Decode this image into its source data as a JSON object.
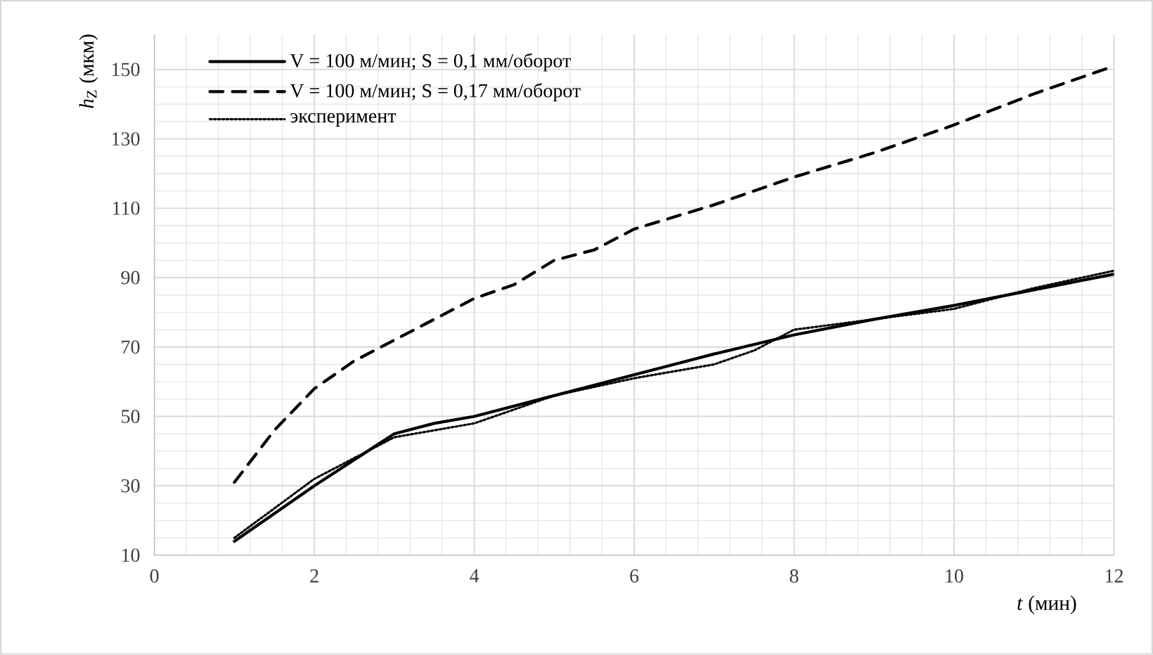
{
  "chart_data": {
    "type": "line",
    "xlabel": "*t* (мин)",
    "ylabel": "*h*$_{Z}$ (мкм)",
    "xlim": [
      0,
      12
    ],
    "xticks": [
      0,
      2,
      4,
      6,
      8,
      10,
      12
    ],
    "ylim": [
      10,
      160
    ],
    "yticks": [
      10,
      30,
      50,
      70,
      90,
      110,
      130,
      150
    ],
    "grid": true,
    "legend": "top left",
    "marker": "none",
    "series": [
      {
        "name": "V = 100 м/мин; S = 0,1 мм/оборот",
        "color": "#000000",
        "line_style": "solid",
        "x": [
          1,
          2,
          3,
          3.5,
          4,
          5,
          6,
          7,
          8,
          9,
          10,
          11,
          12
        ],
        "values": [
          14,
          30,
          45,
          48,
          50,
          56,
          62,
          68,
          73.5,
          78,
          82,
          86.5,
          91
        ]
      },
      {
        "name": "V = 100 м/мин; S = 0,17 мм/оборот",
        "color": "#000000",
        "line_style": "dashed",
        "x": [
          1,
          1.5,
          2,
          2.5,
          3,
          4,
          4.5,
          5,
          5.5,
          6,
          7,
          8,
          9,
          10,
          11,
          12
        ],
        "values": [
          31,
          46,
          58,
          66,
          72,
          84,
          88,
          95,
          98,
          104,
          111,
          119,
          126,
          134,
          143,
          151
        ]
      },
      {
        "name": "эксперимент",
        "color": "#000000",
        "line_style": "dotted",
        "x": [
          1,
          2,
          3,
          4,
          5,
          6,
          7,
          7.5,
          8,
          9,
          10,
          11,
          12
        ],
        "values": [
          15,
          32,
          44,
          48,
          56,
          61,
          65,
          69,
          75,
          78,
          81,
          87,
          92
        ]
      }
    ]
  }
}
